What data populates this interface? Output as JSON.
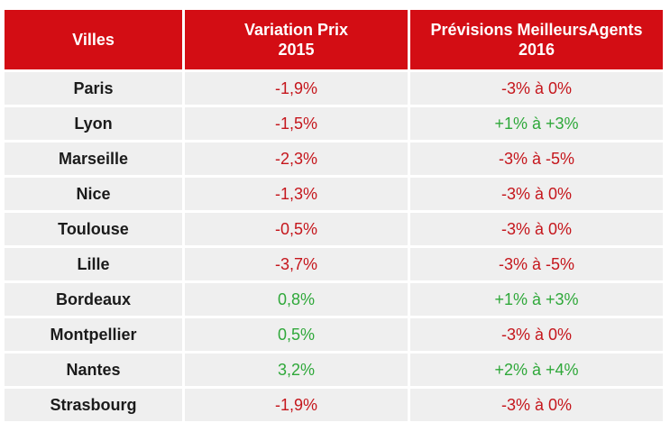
{
  "colors": {
    "header_bg": "#d30d14",
    "row_bg": "#efefef",
    "negative": "#c5161c",
    "positive": "#2fa83a"
  },
  "headers": {
    "cities": "Villes",
    "variation_line1": "Variation Prix",
    "variation_line2": "2015",
    "forecast_line1": "Prévisions MeilleursAgents",
    "forecast_line2": "2016"
  },
  "rows": [
    {
      "city": "Paris",
      "variation": "-1,9%",
      "variation_sign": "neg",
      "forecast": "-3% à 0%",
      "forecast_sign": "neg"
    },
    {
      "city": "Lyon",
      "variation": "-1,5%",
      "variation_sign": "neg",
      "forecast": "+1% à +3%",
      "forecast_sign": "pos"
    },
    {
      "city": "Marseille",
      "variation": "-2,3%",
      "variation_sign": "neg",
      "forecast": "-3% à -5%",
      "forecast_sign": "neg"
    },
    {
      "city": "Nice",
      "variation": "-1,3%",
      "variation_sign": "neg",
      "forecast": "-3% à 0%",
      "forecast_sign": "neg"
    },
    {
      "city": "Toulouse",
      "variation": "-0,5%",
      "variation_sign": "neg",
      "forecast": "-3% à 0%",
      "forecast_sign": "neg"
    },
    {
      "city": "Lille",
      "variation": "-3,7%",
      "variation_sign": "neg",
      "forecast": "-3% à -5%",
      "forecast_sign": "neg"
    },
    {
      "city": "Bordeaux",
      "variation": "0,8%",
      "variation_sign": "pos",
      "forecast": "+1% à +3%",
      "forecast_sign": "pos"
    },
    {
      "city": "Montpellier",
      "variation": "0,5%",
      "variation_sign": "pos",
      "forecast": "-3% à 0%",
      "forecast_sign": "neg"
    },
    {
      "city": "Nantes",
      "variation": "3,2%",
      "variation_sign": "pos",
      "forecast": "+2% à +4%",
      "forecast_sign": "pos"
    },
    {
      "city": "Strasbourg",
      "variation": "-1,9%",
      "variation_sign": "neg",
      "forecast": "-3% à 0%",
      "forecast_sign": "neg"
    }
  ]
}
